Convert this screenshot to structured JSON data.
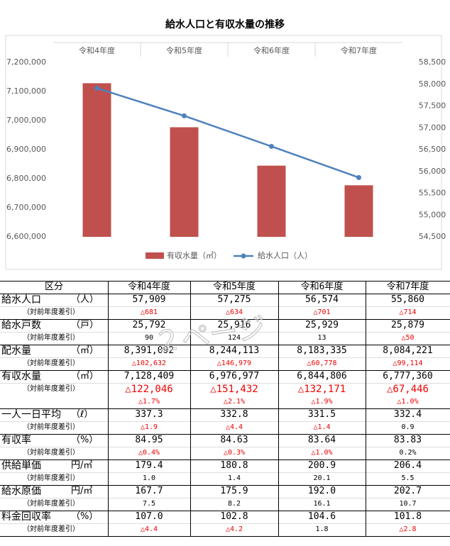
{
  "chart_data": {
    "type": "bar-line",
    "title": "給水人口と有収水量の推移",
    "categories": [
      "令和4年度",
      "令和5年度",
      "令和6年度",
      "令和7年度"
    ],
    "series": [
      {
        "name": "有収水量（㎥）",
        "color": "#c0504d",
        "type": "bar",
        "values": [
          7128409,
          6976977,
          6844806,
          6777360
        ]
      },
      {
        "name": "給水人口（人）",
        "color": "#4f81bd",
        "type": "line",
        "axis": "y2",
        "values": [
          57909,
          57275,
          56574,
          55860
        ]
      }
    ],
    "ylim": [
      6600000,
      7200000
    ],
    "yticks": [
      {
        "value": 6600000,
        "label": "6,600,000"
      },
      {
        "value": 6700000,
        "label": "6,700,000"
      },
      {
        "value": 6800000,
        "label": "6,800,000"
      },
      {
        "value": 6900000,
        "label": "6,900,000"
      },
      {
        "value": 7000000,
        "label": "7,000,000"
      },
      {
        "value": 7100000,
        "label": "7,100,000"
      },
      {
        "value": 7200000,
        "label": "7,200,000"
      }
    ],
    "y2lim": [
      54500,
      58500
    ],
    "y2ticks": [
      {
        "value": 54500,
        "label": "54,500"
      },
      {
        "value": 55000,
        "label": "55,000"
      },
      {
        "value": 55500,
        "label": "55,500"
      },
      {
        "value": 56000,
        "label": "56,000"
      },
      {
        "value": 56500,
        "label": "56,500"
      },
      {
        "value": 57000,
        "label": "57,000"
      },
      {
        "value": 57500,
        "label": "57,500"
      },
      {
        "value": 58000,
        "label": "58,000"
      },
      {
        "value": 58500,
        "label": "58,500"
      }
    ],
    "grid": false,
    "legend": "bottom"
  },
  "table": {
    "header": [
      "区分",
      "令和4年度",
      "令和5年度",
      "令和6年度",
      "令和7年度"
    ],
    "diff_label": "（対前年度差引）",
    "rows": [
      {
        "label": "給水人口",
        "unit": "（人）",
        "values": [
          "57,909",
          "57,275",
          "56,574",
          "55,860"
        ],
        "diff": [
          "△681",
          "△634",
          "△701",
          "△714"
        ]
      },
      {
        "label": "給水戸数",
        "unit": "（戸）",
        "values": [
          "25,792",
          "25,916",
          "25,929",
          "25,879"
        ],
        "diff": [
          "90",
          "124",
          "13",
          "△50"
        ]
      },
      {
        "label": "配水量",
        "unit": "（㎥）",
        "values": [
          "8,391,092",
          "8,244,113",
          "8,183,335",
          "8,084,221"
        ],
        "diff": [
          "△102,632",
          "△146,979",
          "△60,778",
          "△99,114"
        ]
      },
      {
        "label": "有収水量",
        "unit": "（㎥）",
        "values": [
          "7,128,409",
          "6,976,977",
          "6,844,806",
          "6,777,360"
        ],
        "diff": [
          "△122,046",
          "△151,432",
          "△132,171",
          "△67,446"
        ],
        "pct": [
          "△1.7%",
          "△2.1%",
          "△1.9%",
          "△1.0%"
        ]
      },
      {
        "label": "一人一日平均",
        "unit": "（ℓ）",
        "values": [
          "337.3",
          "332.8",
          "331.5",
          "332.4"
        ],
        "diff": [
          "△1.9",
          "△4.4",
          "△1.4",
          "0.9"
        ]
      },
      {
        "label": "有収率",
        "unit": "（%）",
        "values": [
          "84.95",
          "84.63",
          "83.64",
          "83.83"
        ],
        "diff": [
          "△0.4%",
          "△0.3%",
          "△1.0%",
          "0.2%"
        ]
      },
      {
        "label": "供給単価",
        "unit": "円/㎥",
        "values": [
          "179.4",
          "180.8",
          "200.9",
          "206.4"
        ],
        "diff": [
          "1.0",
          "1.4",
          "20.1",
          "5.5"
        ]
      },
      {
        "label": "給水原価",
        "unit": "円/㎥",
        "values": [
          "167.7",
          "175.9",
          "192.0",
          "202.7"
        ],
        "diff": [
          "7.5",
          "8.2",
          "16.1",
          "10.7"
        ]
      },
      {
        "label": "料金回収率",
        "unit": "（%）",
        "values": [
          "107.0",
          "102.8",
          "104.6",
          "101.8"
        ],
        "diff": [
          "△4.4",
          "△4.2",
          "1.8",
          "△2.8"
        ]
      }
    ]
  },
  "watermark": "２ページ"
}
